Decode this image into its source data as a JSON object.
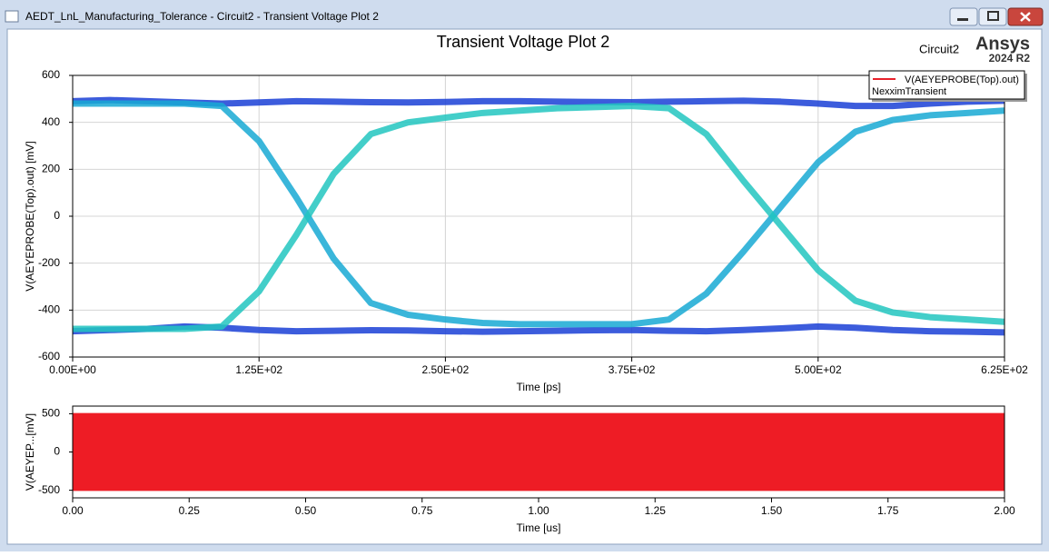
{
  "window": {
    "title": "AEDT_LnL_Manufacturing_Tolerance - Circuit2 - Transient Voltage Plot 2"
  },
  "header": {
    "title": "Transient Voltage Plot 2",
    "design": "Circuit2",
    "brand": "Ansys",
    "version": "2024 R2"
  },
  "legend": {
    "series": "V(AEYEPROBE(Top).out)",
    "setup": "NexximTransient",
    "color": "#e8202a"
  },
  "chart_data": [
    {
      "type": "eye",
      "xlabel": "Time [ps]",
      "ylabel": "V(AEYEPROBE(Top).out) [mV]",
      "xlim": [
        0,
        625
      ],
      "ylim": [
        -600,
        600
      ],
      "xticks": [
        {
          "value": 0,
          "label": "0.00E+00"
        },
        {
          "value": 125,
          "label": "1.25E+02"
        },
        {
          "value": 250,
          "label": "2.50E+02"
        },
        {
          "value": 375,
          "label": "3.75E+02"
        },
        {
          "value": 500,
          "label": "5.00E+02"
        },
        {
          "value": 625,
          "label": "6.25E+02"
        }
      ],
      "yticks": [
        -600,
        -400,
        -200,
        0,
        200,
        400,
        600
      ],
      "grid": true,
      "x": [
        0,
        25,
        50,
        75,
        100,
        125,
        150,
        175,
        200,
        225,
        250,
        275,
        300,
        325,
        350,
        375,
        400,
        425,
        450,
        475,
        500,
        525,
        550,
        575,
        600,
        625
      ],
      "traces": [
        {
          "color": "#1a3fd6",
          "values": [
            490,
            495,
            490,
            485,
            480,
            485,
            490,
            488,
            486,
            485,
            487,
            490,
            490,
            488,
            487,
            486,
            488,
            490,
            492,
            488,
            480,
            470,
            470,
            480,
            488,
            492
          ]
        },
        {
          "color": "#1a3fd6",
          "values": [
            -490,
            -485,
            -480,
            -470,
            -475,
            -485,
            -490,
            -488,
            -486,
            -487,
            -490,
            -492,
            -490,
            -488,
            -486,
            -485,
            -488,
            -490,
            -485,
            -478,
            -470,
            -475,
            -485,
            -490,
            -492,
            -495
          ]
        },
        {
          "color": "#17a9d4",
          "values": [
            480,
            480,
            480,
            480,
            470,
            320,
            80,
            -180,
            -370,
            -420,
            -440,
            -455,
            -460,
            -460,
            -460,
            -460,
            -440,
            -330,
            -150,
            40,
            230,
            360,
            410,
            430,
            440,
            450
          ]
        },
        {
          "color": "#22c6c0",
          "values": [
            -480,
            -480,
            -480,
            -480,
            -470,
            -320,
            -80,
            180,
            350,
            400,
            420,
            440,
            450,
            460,
            465,
            470,
            460,
            350,
            150,
            -40,
            -230,
            -360,
            -410,
            -430,
            -440,
            -450
          ]
        }
      ]
    },
    {
      "type": "band",
      "xlabel": "Time [us]",
      "ylabel": "V(AEYEP...[mV]",
      "color": "#ee1c25",
      "xlim": [
        0,
        2
      ],
      "ylim": [
        -600,
        600
      ],
      "xticks": [
        {
          "value": 0,
          "label": "0.00"
        },
        0.25,
        {
          "value": 0.5,
          "label": "0.50"
        },
        0.75,
        {
          "value": 1,
          "label": "1.00"
        },
        1.25,
        {
          "value": 1.5,
          "label": "1.50"
        },
        1.75,
        {
          "value": 2,
          "label": "2.00"
        }
      ],
      "yticks": [
        -500,
        0,
        500
      ],
      "x": [
        0,
        2
      ],
      "upper": [
        510,
        510
      ],
      "lower": [
        -510,
        -510
      ]
    }
  ]
}
